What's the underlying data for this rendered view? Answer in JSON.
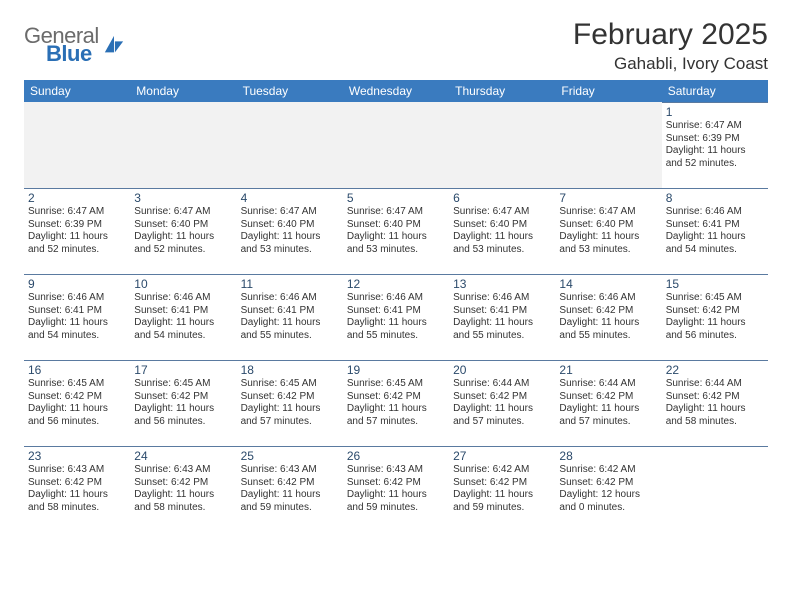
{
  "colors": {
    "header_bar": "#3a7bbf",
    "row_divider": "#5a7aa0",
    "daynum": "#2b4a6b",
    "blank_bg": "#f2f2f2",
    "logo_gray": "#6b6b6b",
    "logo_blue": "#2a6fb5",
    "text": "#333333"
  },
  "logo": {
    "line1": "General",
    "line2": "Blue"
  },
  "title": "February 2025",
  "location": "Gahabli, Ivory Coast",
  "day_headers": [
    "Sunday",
    "Monday",
    "Tuesday",
    "Wednesday",
    "Thursday",
    "Friday",
    "Saturday"
  ],
  "weeks": [
    [
      null,
      null,
      null,
      null,
      null,
      null,
      {
        "n": "1",
        "sr": "6:47 AM",
        "ss": "6:39 PM",
        "dl": "11 hours and 52 minutes."
      }
    ],
    [
      {
        "n": "2",
        "sr": "6:47 AM",
        "ss": "6:39 PM",
        "dl": "11 hours and 52 minutes."
      },
      {
        "n": "3",
        "sr": "6:47 AM",
        "ss": "6:40 PM",
        "dl": "11 hours and 52 minutes."
      },
      {
        "n": "4",
        "sr": "6:47 AM",
        "ss": "6:40 PM",
        "dl": "11 hours and 53 minutes."
      },
      {
        "n": "5",
        "sr": "6:47 AM",
        "ss": "6:40 PM",
        "dl": "11 hours and 53 minutes."
      },
      {
        "n": "6",
        "sr": "6:47 AM",
        "ss": "6:40 PM",
        "dl": "11 hours and 53 minutes."
      },
      {
        "n": "7",
        "sr": "6:47 AM",
        "ss": "6:40 PM",
        "dl": "11 hours and 53 minutes."
      },
      {
        "n": "8",
        "sr": "6:46 AM",
        "ss": "6:41 PM",
        "dl": "11 hours and 54 minutes."
      }
    ],
    [
      {
        "n": "9",
        "sr": "6:46 AM",
        "ss": "6:41 PM",
        "dl": "11 hours and 54 minutes."
      },
      {
        "n": "10",
        "sr": "6:46 AM",
        "ss": "6:41 PM",
        "dl": "11 hours and 54 minutes."
      },
      {
        "n": "11",
        "sr": "6:46 AM",
        "ss": "6:41 PM",
        "dl": "11 hours and 55 minutes."
      },
      {
        "n": "12",
        "sr": "6:46 AM",
        "ss": "6:41 PM",
        "dl": "11 hours and 55 minutes."
      },
      {
        "n": "13",
        "sr": "6:46 AM",
        "ss": "6:41 PM",
        "dl": "11 hours and 55 minutes."
      },
      {
        "n": "14",
        "sr": "6:46 AM",
        "ss": "6:42 PM",
        "dl": "11 hours and 55 minutes."
      },
      {
        "n": "15",
        "sr": "6:45 AM",
        "ss": "6:42 PM",
        "dl": "11 hours and 56 minutes."
      }
    ],
    [
      {
        "n": "16",
        "sr": "6:45 AM",
        "ss": "6:42 PM",
        "dl": "11 hours and 56 minutes."
      },
      {
        "n": "17",
        "sr": "6:45 AM",
        "ss": "6:42 PM",
        "dl": "11 hours and 56 minutes."
      },
      {
        "n": "18",
        "sr": "6:45 AM",
        "ss": "6:42 PM",
        "dl": "11 hours and 57 minutes."
      },
      {
        "n": "19",
        "sr": "6:45 AM",
        "ss": "6:42 PM",
        "dl": "11 hours and 57 minutes."
      },
      {
        "n": "20",
        "sr": "6:44 AM",
        "ss": "6:42 PM",
        "dl": "11 hours and 57 minutes."
      },
      {
        "n": "21",
        "sr": "6:44 AM",
        "ss": "6:42 PM",
        "dl": "11 hours and 57 minutes."
      },
      {
        "n": "22",
        "sr": "6:44 AM",
        "ss": "6:42 PM",
        "dl": "11 hours and 58 minutes."
      }
    ],
    [
      {
        "n": "23",
        "sr": "6:43 AM",
        "ss": "6:42 PM",
        "dl": "11 hours and 58 minutes."
      },
      {
        "n": "24",
        "sr": "6:43 AM",
        "ss": "6:42 PM",
        "dl": "11 hours and 58 minutes."
      },
      {
        "n": "25",
        "sr": "6:43 AM",
        "ss": "6:42 PM",
        "dl": "11 hours and 59 minutes."
      },
      {
        "n": "26",
        "sr": "6:43 AM",
        "ss": "6:42 PM",
        "dl": "11 hours and 59 minutes."
      },
      {
        "n": "27",
        "sr": "6:42 AM",
        "ss": "6:42 PM",
        "dl": "11 hours and 59 minutes."
      },
      {
        "n": "28",
        "sr": "6:42 AM",
        "ss": "6:42 PM",
        "dl": "12 hours and 0 minutes."
      },
      null
    ]
  ],
  "labels": {
    "sunrise_prefix": "Sunrise: ",
    "sunset_prefix": "Sunset: ",
    "daylight_prefix": "Daylight: "
  }
}
